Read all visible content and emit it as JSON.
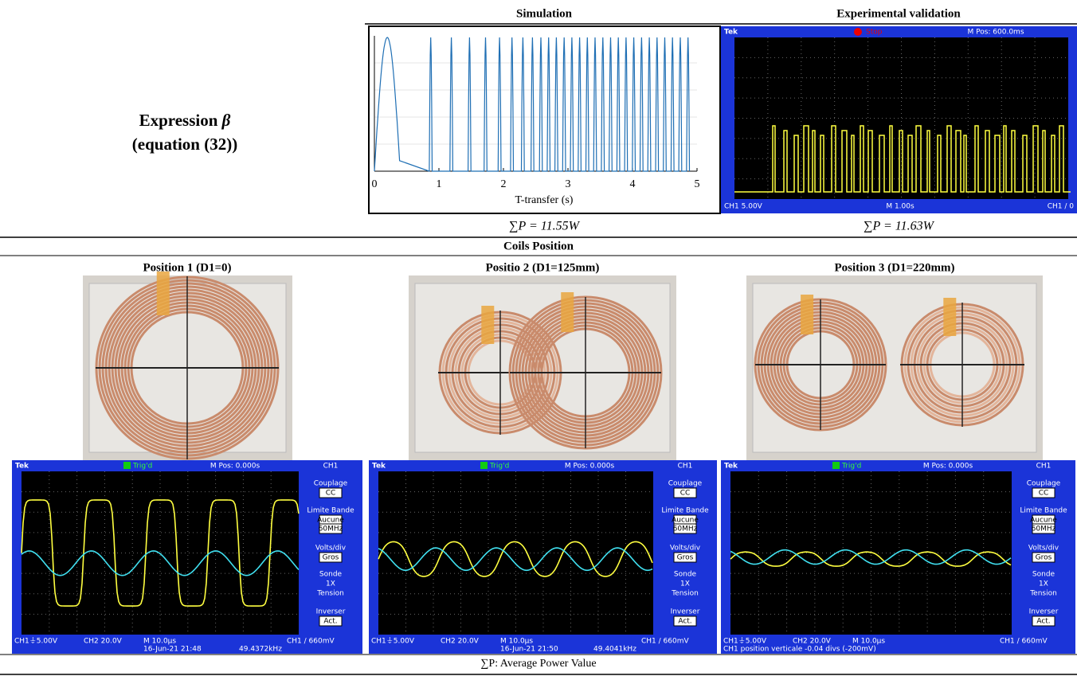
{
  "header": {
    "simulation": "Simulation",
    "experimental": "Experimental validation"
  },
  "expression": {
    "label": "Expression",
    "symbol": "β",
    "equation": "(equation (32))"
  },
  "sim_plot": {
    "xlim": [
      0,
      5
    ],
    "xticks": [
      0,
      1,
      2,
      3,
      4,
      5
    ],
    "x_label": "T-transfer (s)"
  },
  "exp_scope": {
    "top": [
      "Tek",
      "Stop",
      "M Pos: 600.0ms"
    ],
    "bottom": [
      "CH1  5.00V",
      "M 1.00s",
      "CH1 ∕ 0"
    ]
  },
  "power": {
    "simulation": "∑P = 11.55W",
    "experimental": "∑P = 11.63W"
  },
  "coils": {
    "title": "Coils Position",
    "positions": [
      "Position 1 (D1=0)",
      "Positio 2 (D1=125mm)",
      "Position 3 (D1=220mm)"
    ]
  },
  "scopes": [
    {
      "top": [
        "Tek",
        "Trig'd",
        "M Pos: 0.000s",
        "CH1"
      ],
      "menu": [
        "Couplage",
        "CC",
        "Limite Bande",
        "Aucune",
        "60MHz",
        "Volts/div",
        "Gros",
        "Sonde",
        "1X",
        "Tension",
        "Inverser",
        "Act."
      ],
      "bottom1": [
        "CH1⏚5.00V",
        "CH2  20.0V",
        "M 10.0µs",
        "CH1 ∕ 660mV"
      ],
      "bottom2": [
        "16-Jun-21 21:48",
        "49.4372kHz"
      ]
    },
    {
      "top": [
        "Tek",
        "Trig'd",
        "M Pos: 0.000s",
        "CH1"
      ],
      "menu": [
        "Couplage",
        "CC",
        "Limite Bande",
        "Aucune",
        "60MHz",
        "Volts/div",
        "Gros",
        "Sonde",
        "1X",
        "Tension",
        "Inverser",
        "Act."
      ],
      "bottom1": [
        "CH1⏚5.00V",
        "CH2  20.0V",
        "M 10.0µs",
        "CH1 ∕ 660mV"
      ],
      "bottom2": [
        "16-Jun-21 21:50",
        "49.4041kHz"
      ]
    },
    {
      "top": [
        "Tek",
        "Trig'd",
        "M Pos: 0.000s",
        "CH1"
      ],
      "menu": [
        "Couplage",
        "CC",
        "Limite Bande",
        "Aucune",
        "60MHz",
        "Volts/div",
        "Gros",
        "Sonde",
        "1X",
        "Tension",
        "Inverser",
        "Act."
      ],
      "bottom1": [
        "CH1⏚5.00V",
        "CH2  20.0V",
        "M 10.0µs",
        "CH1 ∕ 660mV"
      ],
      "bottom2": [
        "CH1 position verticale -0.04 divs (-200mV)"
      ]
    }
  ],
  "footer": "∑P: Average Power Value"
}
